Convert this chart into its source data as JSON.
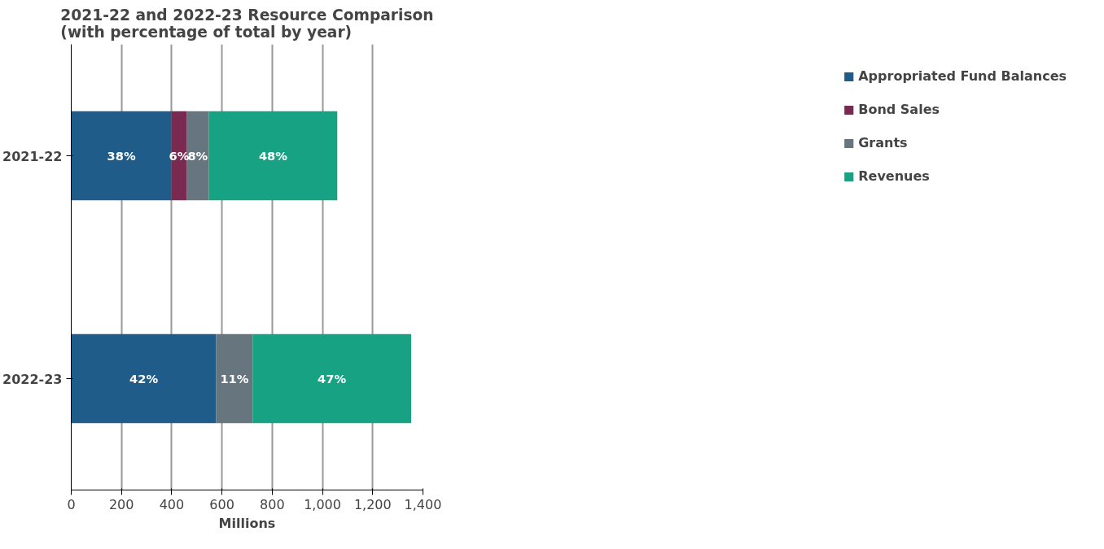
{
  "chart_data": {
    "type": "bar",
    "orientation": "horizontal",
    "stacked": true,
    "title": "2021-22 and 2022-23 Resource Comparison\n(with percentage of total by year)",
    "xlabel": "Millions",
    "categories": [
      "2021-22",
      "2022-23"
    ],
    "series": [
      {
        "name": "Appropriated Fund Balances",
        "color": "#1f5c8a",
        "values": [
          399,
          577
        ]
      },
      {
        "name": "Bond Sales",
        "color": "#7a2a50",
        "values": [
          60,
          null
        ]
      },
      {
        "name": "Grants",
        "color": "#67757e",
        "values": [
          89,
          145
        ]
      },
      {
        "name": "Revenues",
        "color": "#17a383",
        "values": [
          511,
          631
        ]
      }
    ],
    "annotations": [
      "38%",
      "6%",
      "8%",
      "48%",
      "42%",
      "11%",
      "47%"
    ],
    "xlim": [
      0,
      1400
    ],
    "xticks": [
      0,
      200,
      400,
      600,
      800,
      {
        "value": 1000,
        "label": "1,000"
      },
      {
        "value": 1200,
        "label": "1,200"
      },
      {
        "value": 1400,
        "label": "1,400"
      }
    ],
    "grid": "x",
    "legend": "right"
  }
}
